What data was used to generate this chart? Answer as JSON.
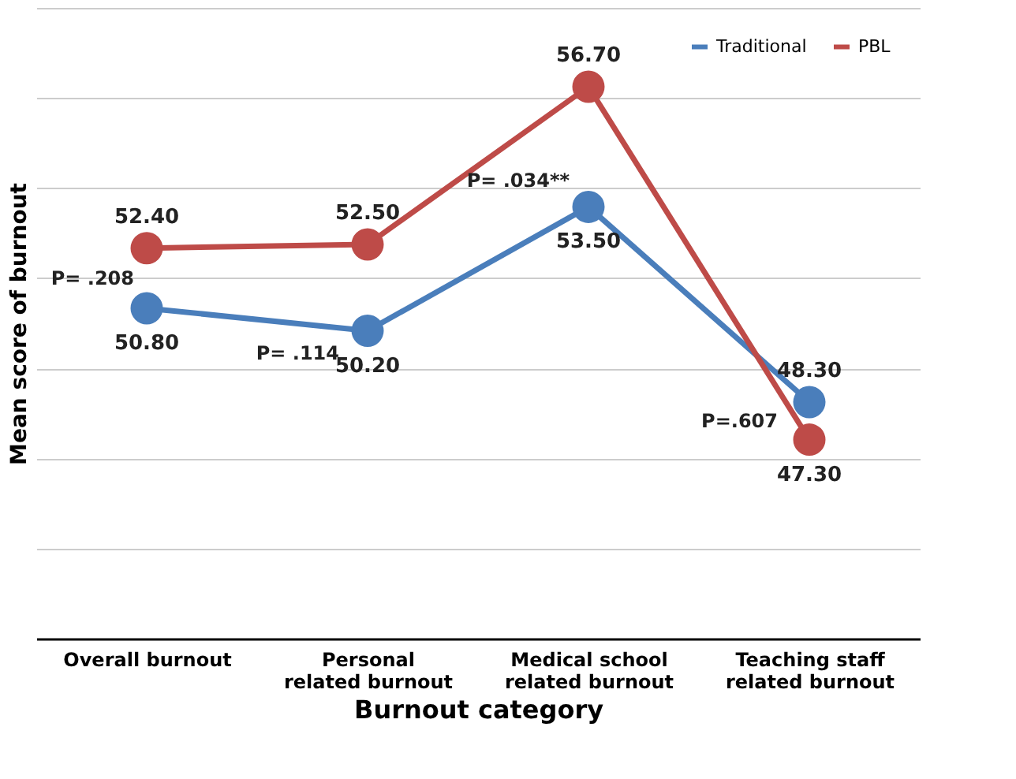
{
  "chart_data": {
    "type": "line",
    "xlabel": "Burnout category",
    "ylabel": "Mean score of burnout",
    "categories": [
      "Overall burnout",
      "Personal\nrelated burnout",
      "Medical school\nrelated burnout",
      "Teaching staff\nrelated burnout"
    ],
    "series": [
      {
        "name": "Traditional",
        "color": "#4a7ebb",
        "values": [
          50.8,
          50.2,
          53.5,
          48.3
        ],
        "value_labels": [
          "50.80",
          "50.20",
          "53.50",
          "48.30"
        ]
      },
      {
        "name": "PBL",
        "color": "#be4b48",
        "values": [
          52.4,
          52.5,
          56.7,
          47.3
        ],
        "value_labels": [
          "52.40",
          "52.50",
          "56.70",
          "47.30"
        ]
      }
    ],
    "ylim": [
      42,
      58.8
    ],
    "yticks": [
      {
        "value": 44.4,
        "label": null
      },
      {
        "value": 46.8,
        "label": null
      },
      {
        "value": 49.2,
        "label": null
      },
      {
        "value": 51.6,
        "label": null
      },
      {
        "value": 54.0,
        "label": null
      },
      {
        "value": 56.4,
        "label": null
      },
      {
        "value": 58.8,
        "label": null
      }
    ],
    "tick_labels": "x",
    "grid": "y",
    "legend": "top right",
    "marker": "circle",
    "line_style": "solid",
    "annotations": [
      "P= .208",
      "P= .114",
      "P= .034**",
      "P=.607"
    ]
  }
}
